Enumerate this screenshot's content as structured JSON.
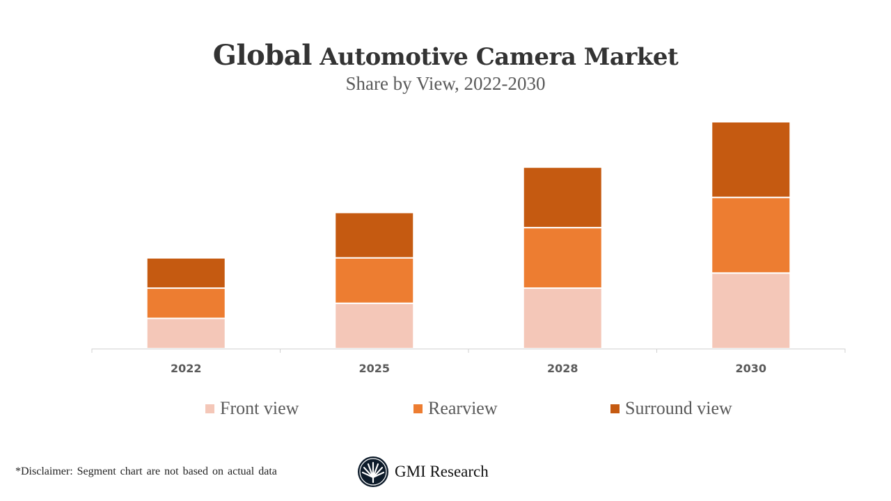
{
  "chart_data": {
    "type": "bar",
    "stacked": true,
    "title_first_word": "Global",
    "title_rest": "Automotive Camera Market",
    "subtitle": "Share by View, 2022-2030",
    "xlabel": "",
    "ylabel": "",
    "categories": [
      "2022",
      "2025",
      "2028",
      "2030"
    ],
    "series": [
      {
        "name": "Front view",
        "color": "#F4C7B8",
        "values": [
          2,
          3,
          4,
          5
        ]
      },
      {
        "name": "Rearview",
        "color": "#ED7D31",
        "values": [
          2,
          3,
          4,
          5
        ]
      },
      {
        "name": "Surround view",
        "color": "#C55A11",
        "values": [
          2,
          3,
          4,
          5
        ]
      }
    ],
    "ylim": [
      0,
      15
    ],
    "y_axis_shown": false,
    "grid": false,
    "legend_position": "bottom"
  },
  "footer": {
    "disclaimer": "*Disclaimer:  Segment chart are not based on actual data",
    "brand": "GMI Research"
  }
}
